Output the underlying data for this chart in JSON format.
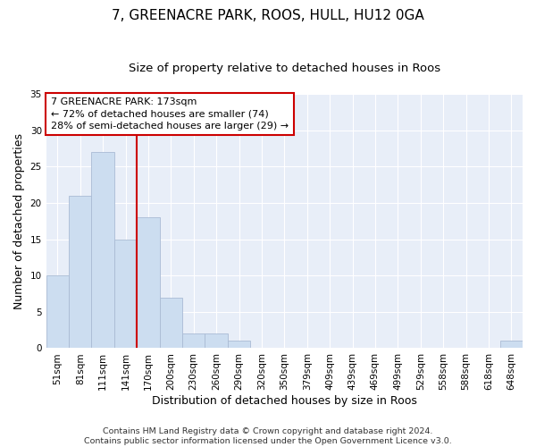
{
  "title": "7, GREENACRE PARK, ROOS, HULL, HU12 0GA",
  "subtitle": "Size of property relative to detached houses in Roos",
  "xlabel": "Distribution of detached houses by size in Roos",
  "ylabel": "Number of detached properties",
  "bar_labels": [
    "51sqm",
    "81sqm",
    "111sqm",
    "141sqm",
    "170sqm",
    "200sqm",
    "230sqm",
    "260sqm",
    "290sqm",
    "320sqm",
    "350sqm",
    "379sqm",
    "409sqm",
    "439sqm",
    "469sqm",
    "499sqm",
    "529sqm",
    "558sqm",
    "588sqm",
    "618sqm",
    "648sqm"
  ],
  "bar_values": [
    10,
    21,
    27,
    15,
    18,
    7,
    2,
    2,
    1,
    0,
    0,
    0,
    0,
    0,
    0,
    0,
    0,
    0,
    0,
    0,
    1
  ],
  "bar_color": "#ccddf0",
  "bar_edge_color": "#aabbd4",
  "vline_x": 3.5,
  "vline_color": "#cc0000",
  "ylim": [
    0,
    35
  ],
  "yticks": [
    0,
    5,
    10,
    15,
    20,
    25,
    30,
    35
  ],
  "annotation_text": "7 GREENACRE PARK: 173sqm\n← 72% of detached houses are smaller (74)\n28% of semi-detached houses are larger (29) →",
  "footer_line1": "Contains HM Land Registry data © Crown copyright and database right 2024.",
  "footer_line2": "Contains public sector information licensed under the Open Government Licence v3.0.",
  "bg_color": "#e8eef8",
  "grid_color": "#ffffff",
  "title_fontsize": 11,
  "subtitle_fontsize": 9.5,
  "axis_label_fontsize": 9,
  "tick_fontsize": 7.5,
  "annotation_fontsize": 8,
  "footer_fontsize": 6.8
}
